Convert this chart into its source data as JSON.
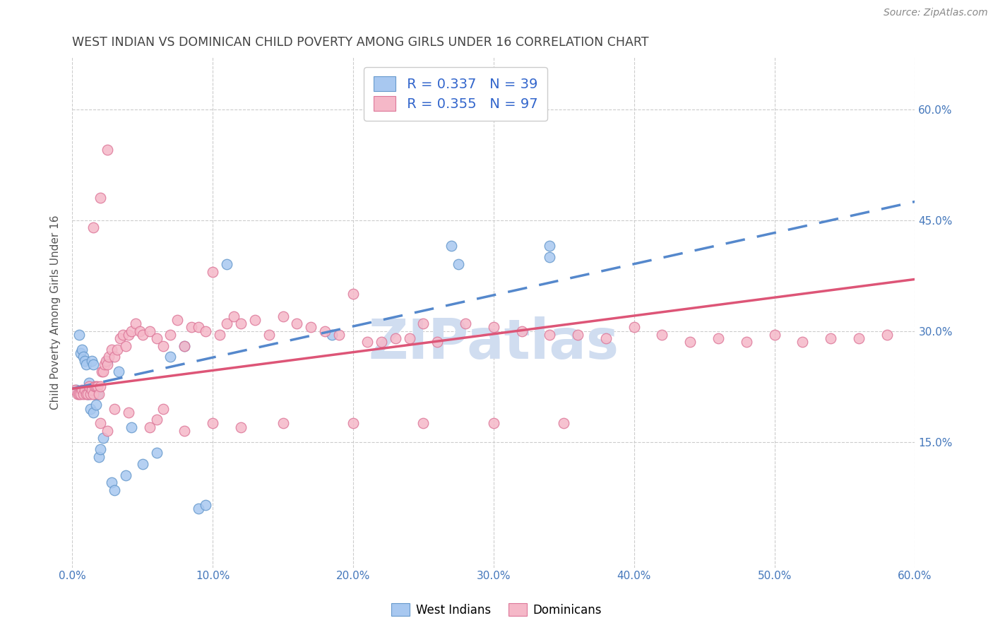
{
  "title": "WEST INDIAN VS DOMINICAN CHILD POVERTY AMONG GIRLS UNDER 16 CORRELATION CHART",
  "source": "Source: ZipAtlas.com",
  "ylabel": "Child Poverty Among Girls Under 16",
  "xlim": [
    0.0,
    0.6
  ],
  "ylim": [
    -0.02,
    0.67
  ],
  "xticks": [
    0.0,
    0.1,
    0.2,
    0.3,
    0.4,
    0.5,
    0.6
  ],
  "xtick_labels": [
    "0.0%",
    "10.0%",
    "20.0%",
    "30.0%",
    "40.0%",
    "50.0%",
    "60.0%"
  ],
  "right_yticks": [
    0.15,
    0.3,
    0.45,
    0.6
  ],
  "right_ytick_labels": [
    "15.0%",
    "30.0%",
    "45.0%",
    "60.0%"
  ],
  "grid_yticks": [
    0.15,
    0.3,
    0.45,
    0.6
  ],
  "legend_r_west": "R = 0.337",
  "legend_n_west": "N = 39",
  "legend_r_dom": "R = 0.355",
  "legend_n_dom": "N = 97",
  "west_color": "#a8c8f0",
  "dom_color": "#f5b8c8",
  "west_edge_color": "#6699cc",
  "dom_edge_color": "#dd7799",
  "west_line_color": "#5588cc",
  "dom_line_color": "#dd5577",
  "blue_text_color": "#3366cc",
  "watermark_color": "#d0ddf0",
  "background_color": "#ffffff",
  "title_color": "#444444",
  "axis_tick_color": "#4477bb",
  "grid_color": "#cccccc",
  "west_line_start_y": 0.222,
  "west_line_end_y": 0.475,
  "dom_line_start_y": 0.222,
  "dom_line_end_y": 0.37,
  "west_scatter_x": [
    0.003,
    0.005,
    0.006,
    0.007,
    0.008,
    0.009,
    0.01,
    0.01,
    0.011,
    0.012,
    0.012,
    0.013,
    0.014,
    0.015,
    0.015,
    0.016,
    0.017,
    0.018,
    0.019,
    0.02,
    0.022,
    0.025,
    0.028,
    0.03,
    0.033,
    0.038,
    0.042,
    0.05,
    0.06,
    0.07,
    0.08,
    0.09,
    0.095,
    0.11,
    0.185,
    0.27,
    0.275,
    0.34,
    0.34
  ],
  "west_scatter_y": [
    0.22,
    0.295,
    0.27,
    0.275,
    0.265,
    0.26,
    0.22,
    0.255,
    0.215,
    0.215,
    0.23,
    0.195,
    0.26,
    0.19,
    0.255,
    0.215,
    0.2,
    0.215,
    0.13,
    0.14,
    0.155,
    0.26,
    0.095,
    0.085,
    0.245,
    0.105,
    0.17,
    0.12,
    0.135,
    0.265,
    0.28,
    0.06,
    0.065,
    0.39,
    0.295,
    0.415,
    0.39,
    0.415,
    0.4
  ],
  "dom_scatter_x": [
    0.002,
    0.004,
    0.005,
    0.006,
    0.007,
    0.008,
    0.009,
    0.01,
    0.011,
    0.012,
    0.013,
    0.014,
    0.015,
    0.016,
    0.017,
    0.018,
    0.019,
    0.02,
    0.021,
    0.022,
    0.023,
    0.024,
    0.025,
    0.026,
    0.028,
    0.03,
    0.032,
    0.034,
    0.036,
    0.038,
    0.04,
    0.042,
    0.045,
    0.048,
    0.05,
    0.055,
    0.06,
    0.065,
    0.07,
    0.075,
    0.08,
    0.085,
    0.09,
    0.095,
    0.1,
    0.105,
    0.11,
    0.115,
    0.12,
    0.13,
    0.14,
    0.15,
    0.16,
    0.17,
    0.18,
    0.19,
    0.2,
    0.21,
    0.22,
    0.23,
    0.24,
    0.25,
    0.26,
    0.28,
    0.3,
    0.32,
    0.34,
    0.36,
    0.38,
    0.4,
    0.42,
    0.44,
    0.46,
    0.48,
    0.5,
    0.52,
    0.54,
    0.56,
    0.58,
    0.02,
    0.025,
    0.03,
    0.04,
    0.055,
    0.065,
    0.08,
    0.1,
    0.12,
    0.15,
    0.2,
    0.25,
    0.3,
    0.35,
    0.06,
    0.015,
    0.02,
    0.025
  ],
  "dom_scatter_y": [
    0.22,
    0.215,
    0.215,
    0.215,
    0.22,
    0.215,
    0.22,
    0.215,
    0.215,
    0.225,
    0.215,
    0.22,
    0.215,
    0.225,
    0.225,
    0.225,
    0.215,
    0.225,
    0.245,
    0.245,
    0.255,
    0.26,
    0.255,
    0.265,
    0.275,
    0.265,
    0.275,
    0.29,
    0.295,
    0.28,
    0.295,
    0.3,
    0.31,
    0.3,
    0.295,
    0.3,
    0.29,
    0.28,
    0.295,
    0.315,
    0.28,
    0.305,
    0.305,
    0.3,
    0.38,
    0.295,
    0.31,
    0.32,
    0.31,
    0.315,
    0.295,
    0.32,
    0.31,
    0.305,
    0.3,
    0.295,
    0.35,
    0.285,
    0.285,
    0.29,
    0.29,
    0.31,
    0.285,
    0.31,
    0.305,
    0.3,
    0.295,
    0.295,
    0.29,
    0.305,
    0.295,
    0.285,
    0.29,
    0.285,
    0.295,
    0.285,
    0.29,
    0.29,
    0.295,
    0.175,
    0.165,
    0.195,
    0.19,
    0.17,
    0.195,
    0.165,
    0.175,
    0.17,
    0.175,
    0.175,
    0.175,
    0.175,
    0.175,
    0.18,
    0.44,
    0.48,
    0.545
  ]
}
